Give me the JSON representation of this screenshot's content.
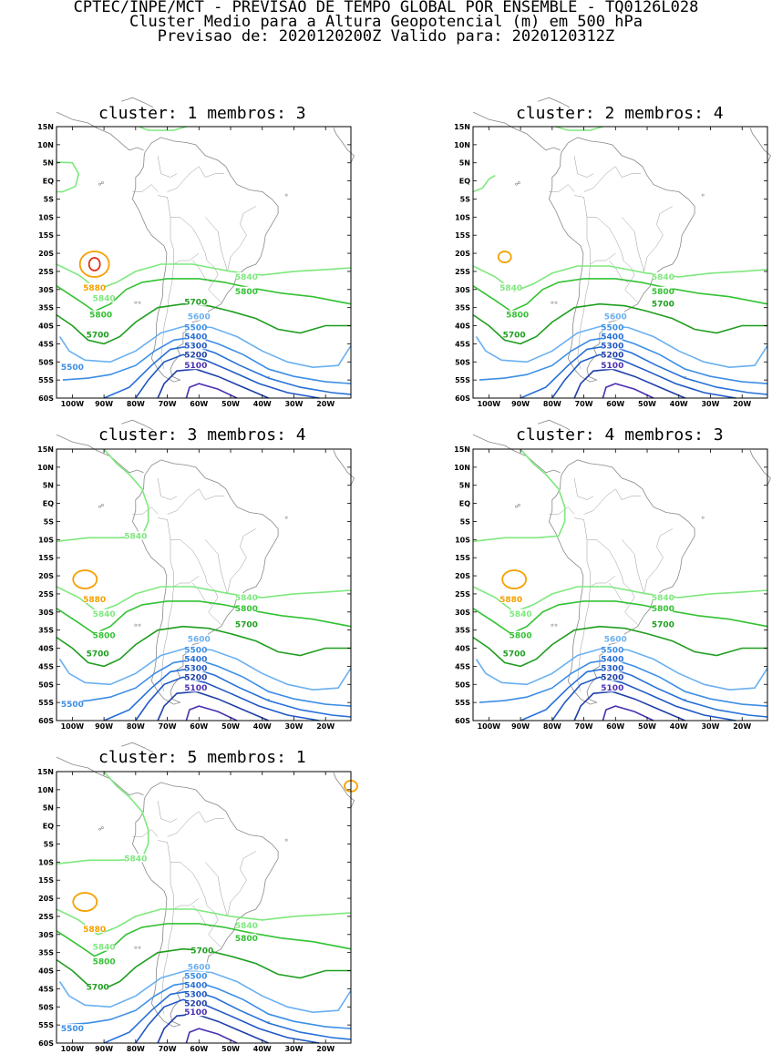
{
  "header": {
    "line1": "CPTEC/INPE/MCT - PREVISAO DE TEMPO GLOBAL POR ENSEMBLE - TQ0126L028",
    "line2": "Cluster Medio para a Altura Geopotencial (m) em 500 hPa",
    "line3": "Previsao de: 2020120200Z   Valido para: 2020120312Z"
  },
  "axes": {
    "lat_labels": [
      "15N",
      "10N",
      "5N",
      "EQ",
      "5S",
      "10S",
      "15S",
      "20S",
      "25S",
      "30S",
      "35S",
      "40S",
      "45S",
      "50S",
      "55S",
      "60S"
    ],
    "lon_labels": [
      "100W",
      "90W",
      "80W",
      "70W",
      "60W",
      "50W",
      "40W",
      "30W",
      "20W"
    ]
  },
  "colors": {
    "5100": "#4b30b0",
    "5200": "#1f3fa8",
    "5300": "#1f58c4",
    "5400": "#2670d8",
    "5500": "#3c8ee6",
    "5600": "#6ab0f0",
    "5700": "#1f9e1f",
    "5800": "#33c233",
    "5840": "#7ee87e",
    "5880": "#f5a000",
    "5920": "#e03010"
  },
  "panels": [
    {
      "title": "cluster: 1   membros: 3",
      "labels": [
        {
          "text": "5840",
          "level": "5840"
        },
        {
          "text": "5880",
          "level": "5880"
        },
        {
          "text": "5840",
          "level": "5840"
        },
        {
          "text": "5800",
          "level": "5800"
        },
        {
          "text": "5800",
          "level": "5800"
        },
        {
          "text": "5700",
          "level": "5700"
        },
        {
          "text": "5700",
          "level": "5700"
        },
        {
          "text": "5600",
          "level": "5600"
        },
        {
          "text": "5500",
          "level": "5500"
        },
        {
          "text": "5400",
          "level": "5400"
        },
        {
          "text": "5300",
          "level": "5300"
        },
        {
          "text": "5200",
          "level": "5200"
        },
        {
          "text": "5100",
          "level": "5100"
        },
        {
          "text": "5500",
          "level": "5500"
        }
      ]
    },
    {
      "title": "cluster: 2   membros: 4",
      "labels": [
        {
          "text": "5840",
          "level": "5840"
        },
        {
          "text": "5840",
          "level": "5840"
        },
        {
          "text": "5800",
          "level": "5800"
        },
        {
          "text": "5800",
          "level": "5800"
        },
        {
          "text": "5700",
          "level": "5700"
        },
        {
          "text": "5700",
          "level": "5700"
        },
        {
          "text": "5600",
          "level": "5600"
        },
        {
          "text": "5500",
          "level": "5500"
        },
        {
          "text": "5400",
          "level": "5400"
        },
        {
          "text": "5300",
          "level": "5300"
        },
        {
          "text": "5200",
          "level": "5200"
        },
        {
          "text": "5100",
          "level": "5100"
        }
      ]
    },
    {
      "title": "cluster: 3   membros: 4",
      "labels": [
        {
          "text": "5840",
          "level": "5840"
        },
        {
          "text": "5880",
          "level": "5880"
        },
        {
          "text": "5840",
          "level": "5840"
        },
        {
          "text": "5840",
          "level": "5840"
        },
        {
          "text": "5800",
          "level": "5800"
        },
        {
          "text": "5800",
          "level": "5800"
        },
        {
          "text": "5700",
          "level": "5700"
        },
        {
          "text": "5700",
          "level": "5700"
        },
        {
          "text": "5600",
          "level": "5600"
        },
        {
          "text": "5500",
          "level": "5500"
        },
        {
          "text": "5400",
          "level": "5400"
        },
        {
          "text": "5300",
          "level": "5300"
        },
        {
          "text": "5200",
          "level": "5200"
        },
        {
          "text": "5100",
          "level": "5100"
        },
        {
          "text": "5500",
          "level": "5500"
        }
      ]
    },
    {
      "title": "cluster: 4   membros: 3",
      "labels": [
        {
          "text": "5880",
          "level": "5880"
        },
        {
          "text": "5840",
          "level": "5840"
        },
        {
          "text": "5840",
          "level": "5840"
        },
        {
          "text": "5800",
          "level": "5800"
        },
        {
          "text": "5800",
          "level": "5800"
        },
        {
          "text": "5700",
          "level": "5700"
        },
        {
          "text": "5700",
          "level": "5700"
        },
        {
          "text": "5600",
          "level": "5600"
        },
        {
          "text": "5500",
          "level": "5500"
        },
        {
          "text": "5400",
          "level": "5400"
        },
        {
          "text": "5300",
          "level": "5300"
        },
        {
          "text": "5200",
          "level": "5200"
        },
        {
          "text": "5100",
          "level": "5100"
        }
      ]
    },
    {
      "title": "cluster: 5   membros: 1",
      "labels": [
        {
          "text": "5840",
          "level": "5840"
        },
        {
          "text": "5880",
          "level": "5880"
        },
        {
          "text": "5840",
          "level": "5840"
        },
        {
          "text": "5840",
          "level": "5840"
        },
        {
          "text": "5800",
          "level": "5800"
        },
        {
          "text": "5800",
          "level": "5800"
        },
        {
          "text": "5700",
          "level": "5700"
        },
        {
          "text": "5700",
          "level": "5700"
        },
        {
          "text": "5600",
          "level": "5600"
        },
        {
          "text": "5500",
          "level": "5500"
        },
        {
          "text": "5400",
          "level": "5400"
        },
        {
          "text": "5300",
          "level": "5300"
        },
        {
          "text": "5200",
          "level": "5200"
        },
        {
          "text": "5100",
          "level": "5100"
        },
        {
          "text": "5500",
          "level": "5500"
        }
      ]
    }
  ]
}
